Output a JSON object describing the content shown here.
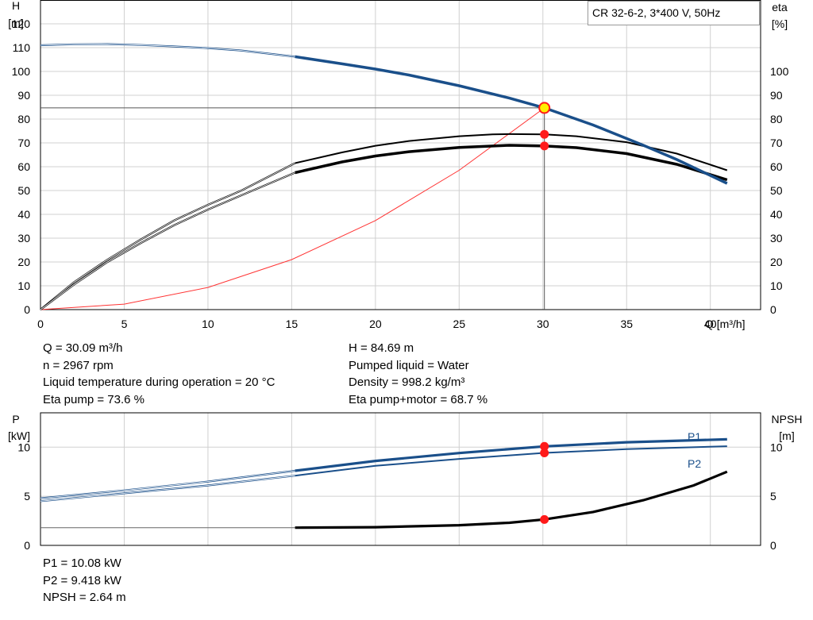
{
  "colors": {
    "head": "#1a4f8a",
    "efficiency": "#000000",
    "system": "#ff3333",
    "power": "#1a4f8a",
    "npsh": "#000000",
    "duty_point": "#ff1a1a",
    "marker_fill": "#ffee00",
    "grid": "#d0d0d0"
  },
  "pump": {
    "title": "CR 32-6-2, 3*400 V, 50Hz"
  },
  "info_top_left": [
    "Q = 30.09 m³/h",
    "n = 2967 rpm",
    "Liquid temperature during operation = 20 °C",
    "Eta pump = 73.6 %"
  ],
  "info_top_right": [
    "H = 84.69 m",
    "Pumped liquid = Water",
    "Density = 998.2 kg/m³",
    "Eta pump+motor = 68.7 %"
  ],
  "info_bottom": [
    "P1 = 10.08 kW",
    "P2 = 9.418 kW",
    "NPSH = 2.64 m"
  ],
  "chart_data": [
    {
      "type": "line",
      "id": "head-efficiency",
      "title": "CR 32-6-2, 3*400 V, 50Hz",
      "xlabel": "Q [m³/h]",
      "ylabel": "H [m]",
      "ylabel_right": "eta [%]",
      "xlim": [
        0,
        43
      ],
      "ylim": [
        0,
        130
      ],
      "xticks": [
        0,
        5,
        10,
        15,
        20,
        25,
        30,
        35,
        40
      ],
      "yticks": [
        0,
        10,
        20,
        30,
        40,
        50,
        60,
        70,
        80,
        90,
        100,
        110,
        120
      ],
      "yticks_right": [
        0,
        10,
        20,
        30,
        40,
        50,
        60,
        70,
        80,
        90,
        100
      ],
      "grid": true,
      "series": [
        {
          "key": "head",
          "unit": "m",
          "points": [
            [
              0,
              111
            ],
            [
              2,
              111.4
            ],
            [
              4,
              111.5
            ],
            [
              6,
              111.1
            ],
            [
              8,
              110.5
            ],
            [
              10,
              109.8
            ],
            [
              12,
              108.8
            ],
            [
              15.2,
              106.2
            ],
            [
              18,
              103.2
            ],
            [
              20,
              101
            ],
            [
              22,
              98.5
            ],
            [
              25,
              94
            ],
            [
              28,
              88.8
            ],
            [
              30.09,
              84.69
            ],
            [
              33,
              77.5
            ],
            [
              36,
              69
            ],
            [
              38,
              63
            ],
            [
              41,
              53
            ]
          ]
        },
        {
          "key": "eta_pump",
          "unit": "%",
          "points": [
            [
              0,
              0
            ],
            [
              2,
              11.5
            ],
            [
              4,
              21
            ],
            [
              6,
              29.5
            ],
            [
              8,
              37.5
            ],
            [
              10,
              44
            ],
            [
              12,
              50
            ],
            [
              15.2,
              61.5
            ],
            [
              18,
              66
            ],
            [
              20,
              68.8
            ],
            [
              22,
              70.8
            ],
            [
              25,
              72.8
            ],
            [
              27,
              73.6
            ],
            [
              28,
              73.7
            ],
            [
              30.09,
              73.6
            ],
            [
              32,
              72.8
            ],
            [
              35,
              70.3
            ],
            [
              38,
              65.5
            ],
            [
              41,
              58.5
            ]
          ]
        },
        {
          "key": "eta_total",
          "unit": "%",
          "points": [
            [
              0,
              0
            ],
            [
              2,
              10.5
            ],
            [
              4,
              20
            ],
            [
              6,
              28
            ],
            [
              8,
              35.5
            ],
            [
              10,
              42
            ],
            [
              12,
              48
            ],
            [
              15.2,
              57.5
            ],
            [
              18,
              62
            ],
            [
              20,
              64.5
            ],
            [
              22,
              66.3
            ],
            [
              25,
              68.1
            ],
            [
              28,
              69
            ],
            [
              30.09,
              68.7
            ],
            [
              32,
              68
            ],
            [
              35,
              65.5
            ],
            [
              38,
              61
            ],
            [
              41,
              54.5
            ]
          ]
        },
        {
          "key": "system",
          "unit": "m",
          "points": [
            [
              0,
              0
            ],
            [
              5,
              2.3
            ],
            [
              10,
              9.3
            ],
            [
              15,
              21
            ],
            [
              20,
              37.4
            ],
            [
              25,
              58.5
            ],
            [
              30.09,
              84.69
            ]
          ]
        }
      ],
      "duty_point": {
        "Q": 30.09,
        "H": 84.69,
        "eta_pump": 73.6,
        "eta_total": 68.7
      }
    },
    {
      "type": "line",
      "id": "power-npsh",
      "xlabel": "Q [m³/h]",
      "ylabel": "P [kW]",
      "ylabel_right": "NPSH [m]",
      "xlim": [
        0,
        43
      ],
      "ylim": [
        0,
        13.5
      ],
      "yticks": [
        0,
        5,
        10
      ],
      "yticks_right": [
        0,
        5,
        10
      ],
      "grid": true,
      "series": [
        {
          "key": "P1",
          "name": "P1",
          "unit": "kW",
          "points": [
            [
              0,
              4.8
            ],
            [
              5,
              5.6
            ],
            [
              10,
              6.5
            ],
            [
              15.2,
              7.6
            ],
            [
              20,
              8.6
            ],
            [
              25,
              9.4
            ],
            [
              30.09,
              10.08
            ],
            [
              35,
              10.5
            ],
            [
              41,
              10.8
            ]
          ]
        },
        {
          "key": "P2",
          "name": "P2",
          "unit": "kW",
          "points": [
            [
              0,
              4.5
            ],
            [
              5,
              5.3
            ],
            [
              10,
              6.1
            ],
            [
              15.2,
              7.1
            ],
            [
              20,
              8.1
            ],
            [
              25,
              8.8
            ],
            [
              30.09,
              9.418
            ],
            [
              35,
              9.8
            ],
            [
              41,
              10.1
            ]
          ]
        },
        {
          "key": "NPSH",
          "unit": "m",
          "points": [
            [
              0,
              1.8
            ],
            [
              15.2,
              1.8
            ],
            [
              20,
              1.85
            ],
            [
              25,
              2.05
            ],
            [
              28,
              2.3
            ],
            [
              30.09,
              2.64
            ],
            [
              33,
              3.4
            ],
            [
              36,
              4.6
            ],
            [
              39,
              6.1
            ],
            [
              41,
              7.5
            ]
          ]
        }
      ],
      "duty_point": {
        "Q": 30.09,
        "P1": 10.08,
        "P2": 9.418,
        "NPSH": 2.64
      }
    }
  ]
}
